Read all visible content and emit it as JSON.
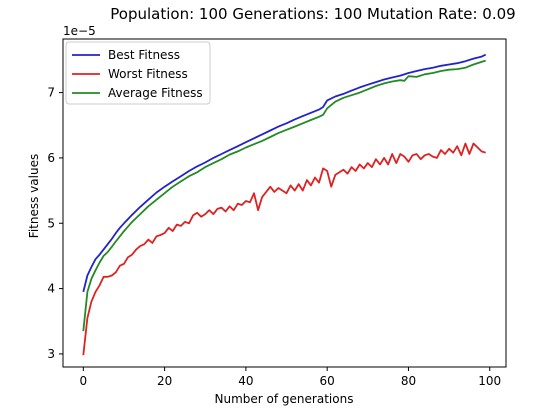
{
  "chart_data": {
    "type": "line",
    "title": "Population: 100 Generations: 100 Mutation Rate: 0.09",
    "xlabel": "Number of generations",
    "ylabel": "Fitness values",
    "y_offset_label": "1e−5",
    "xlim": [
      -5,
      104
    ],
    "ylim": [
      2.8,
      7.82
    ],
    "x_ticks": [
      0,
      20,
      40,
      60,
      80,
      100
    ],
    "y_ticks": [
      3,
      4,
      5,
      6,
      7
    ],
    "grid": false,
    "legend_position": "top-left",
    "series": [
      {
        "name": "Best Fitness",
        "color": "#2222cc",
        "x": [
          0,
          1,
          2,
          3,
          4,
          5,
          6,
          7,
          8,
          9,
          10,
          12,
          14,
          16,
          18,
          20,
          22,
          24,
          26,
          28,
          30,
          32,
          34,
          36,
          38,
          40,
          42,
          44,
          46,
          48,
          50,
          52,
          54,
          56,
          58,
          59,
          60,
          62,
          64,
          66,
          68,
          70,
          72,
          74,
          76,
          78,
          80,
          82,
          84,
          86,
          88,
          90,
          92,
          94,
          96,
          98,
          99
        ],
        "values": [
          3.95,
          4.2,
          4.33,
          4.45,
          4.52,
          4.6,
          4.68,
          4.76,
          4.85,
          4.93,
          5.0,
          5.13,
          5.25,
          5.36,
          5.47,
          5.56,
          5.64,
          5.72,
          5.8,
          5.87,
          5.93,
          6.0,
          6.06,
          6.12,
          6.18,
          6.24,
          6.3,
          6.36,
          6.42,
          6.48,
          6.53,
          6.59,
          6.64,
          6.69,
          6.74,
          6.78,
          6.88,
          6.94,
          6.98,
          7.03,
          7.08,
          7.12,
          7.16,
          7.2,
          7.23,
          7.26,
          7.3,
          7.33,
          7.36,
          7.38,
          7.41,
          7.43,
          7.45,
          7.48,
          7.52,
          7.55,
          7.58
        ]
      },
      {
        "name": "Worst Fitness",
        "color": "#dd2222",
        "x": [
          0,
          1,
          2,
          3,
          4,
          5,
          6,
          7,
          8,
          9,
          10,
          11,
          12,
          13,
          14,
          15,
          16,
          17,
          18,
          19,
          20,
          21,
          22,
          23,
          24,
          25,
          26,
          27,
          28,
          29,
          30,
          31,
          32,
          33,
          34,
          35,
          36,
          37,
          38,
          39,
          40,
          41,
          42,
          43,
          44,
          45,
          46,
          47,
          48,
          49,
          50,
          51,
          52,
          53,
          54,
          55,
          56,
          57,
          58,
          59,
          60,
          61,
          62,
          63,
          64,
          65,
          66,
          67,
          68,
          69,
          70,
          71,
          72,
          73,
          74,
          75,
          76,
          77,
          78,
          79,
          80,
          81,
          82,
          83,
          84,
          85,
          86,
          87,
          88,
          89,
          90,
          91,
          92,
          93,
          94,
          95,
          96,
          97,
          98,
          99
        ],
        "values": [
          2.98,
          3.55,
          3.8,
          3.95,
          4.05,
          4.18,
          4.18,
          4.2,
          4.25,
          4.35,
          4.38,
          4.48,
          4.52,
          4.6,
          4.65,
          4.68,
          4.75,
          4.7,
          4.8,
          4.82,
          4.85,
          4.93,
          4.88,
          4.98,
          4.96,
          5.02,
          5.0,
          5.12,
          5.16,
          5.1,
          5.14,
          5.2,
          5.14,
          5.22,
          5.24,
          5.18,
          5.26,
          5.2,
          5.3,
          5.28,
          5.34,
          5.32,
          5.46,
          5.2,
          5.4,
          5.48,
          5.56,
          5.48,
          5.54,
          5.5,
          5.46,
          5.58,
          5.5,
          5.6,
          5.5,
          5.66,
          5.58,
          5.7,
          5.62,
          5.84,
          5.8,
          5.56,
          5.74,
          5.78,
          5.82,
          5.76,
          5.86,
          5.8,
          5.9,
          5.84,
          5.92,
          5.86,
          5.98,
          5.9,
          6.0,
          5.9,
          6.06,
          5.92,
          6.06,
          6.02,
          5.94,
          6.04,
          6.06,
          5.98,
          6.04,
          6.06,
          6.02,
          6.0,
          6.12,
          6.06,
          6.14,
          6.08,
          6.18,
          6.04,
          6.22,
          6.06,
          6.22,
          6.16,
          6.1,
          6.08
        ]
      },
      {
        "name": "Average Fitness",
        "color": "#228b22",
        "x": [
          0,
          1,
          2,
          3,
          4,
          5,
          6,
          7,
          8,
          9,
          10,
          12,
          14,
          16,
          18,
          20,
          22,
          24,
          26,
          28,
          30,
          32,
          34,
          36,
          38,
          40,
          42,
          44,
          46,
          48,
          50,
          52,
          54,
          56,
          58,
          59,
          60,
          62,
          64,
          66,
          68,
          70,
          72,
          74,
          76,
          78,
          79,
          80,
          82,
          84,
          86,
          88,
          90,
          92,
          94,
          96,
          98,
          99
        ],
        "values": [
          3.35,
          3.95,
          4.15,
          4.28,
          4.4,
          4.5,
          4.56,
          4.64,
          4.72,
          4.8,
          4.88,
          5.02,
          5.14,
          5.26,
          5.36,
          5.46,
          5.56,
          5.64,
          5.72,
          5.78,
          5.86,
          5.92,
          5.98,
          6.05,
          6.1,
          6.16,
          6.21,
          6.26,
          6.32,
          6.38,
          6.43,
          6.48,
          6.53,
          6.58,
          6.63,
          6.66,
          6.76,
          6.86,
          6.92,
          6.96,
          7.0,
          7.05,
          7.1,
          7.14,
          7.17,
          7.19,
          7.18,
          7.25,
          7.24,
          7.28,
          7.3,
          7.33,
          7.35,
          7.36,
          7.38,
          7.43,
          7.47,
          7.49
        ]
      }
    ]
  }
}
